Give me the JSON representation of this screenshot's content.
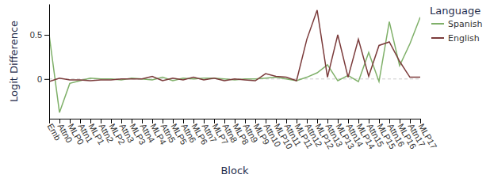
{
  "chart_data": {
    "type": "line",
    "x_label": "Block",
    "y_label": "Logit Difference",
    "categories": [
      "Emb",
      "Attn0",
      "MLP0",
      "Attn1",
      "MLP1",
      "Attn2",
      "MLP2",
      "Attn3",
      "MLP3",
      "Attn4",
      "MLP4",
      "Attn5",
      "MLP5",
      "Attn6",
      "MLP6",
      "Attn7",
      "MLP7",
      "Attn8",
      "MLP8",
      "Attn9",
      "MLP9",
      "Attn10",
      "MLP10",
      "Attn11",
      "MLP11",
      "Attn12",
      "MLP12",
      "Attn13",
      "MLP13",
      "Attn14",
      "MLP14",
      "Attn15",
      "MLP15",
      "Attn16",
      "MLP16",
      "Attn17",
      "MLP17"
    ],
    "series": [
      {
        "name": "Spanish",
        "color": "#7fb069",
        "values": [
          0.5,
          -0.38,
          -0.05,
          -0.02,
          0.01,
          0.0,
          0.0,
          -0.01,
          0.01,
          0.0,
          -0.01,
          0.02,
          -0.02,
          0.01,
          0.0,
          0.01,
          0.01,
          0.0,
          -0.01,
          0.0,
          0.0,
          0.01,
          0.02,
          0.0,
          -0.02,
          0.02,
          0.07,
          0.16,
          -0.02,
          0.04,
          -0.03,
          0.3,
          -0.03,
          0.65,
          0.15,
          0.4,
          0.7
        ]
      },
      {
        "name": "English",
        "color": "#7b3b3b",
        "values": [
          -0.03,
          0.01,
          -0.01,
          -0.01,
          -0.02,
          -0.01,
          -0.01,
          0.0,
          0.0,
          0.0,
          0.03,
          -0.02,
          0.01,
          -0.01,
          0.02,
          -0.01,
          0.01,
          -0.02,
          0.0,
          -0.01,
          -0.02,
          0.06,
          0.03,
          0.02,
          -0.02,
          0.45,
          0.78,
          0.02,
          0.5,
          0.02,
          0.45,
          0.03,
          0.38,
          0.42,
          0.2,
          0.02,
          0.02
        ]
      }
    ],
    "ylim": [
      -0.45,
      0.85
    ],
    "yticks": [
      0,
      0.5
    ],
    "grid": false,
    "legend": "upper right",
    "legend_title": "Language"
  }
}
